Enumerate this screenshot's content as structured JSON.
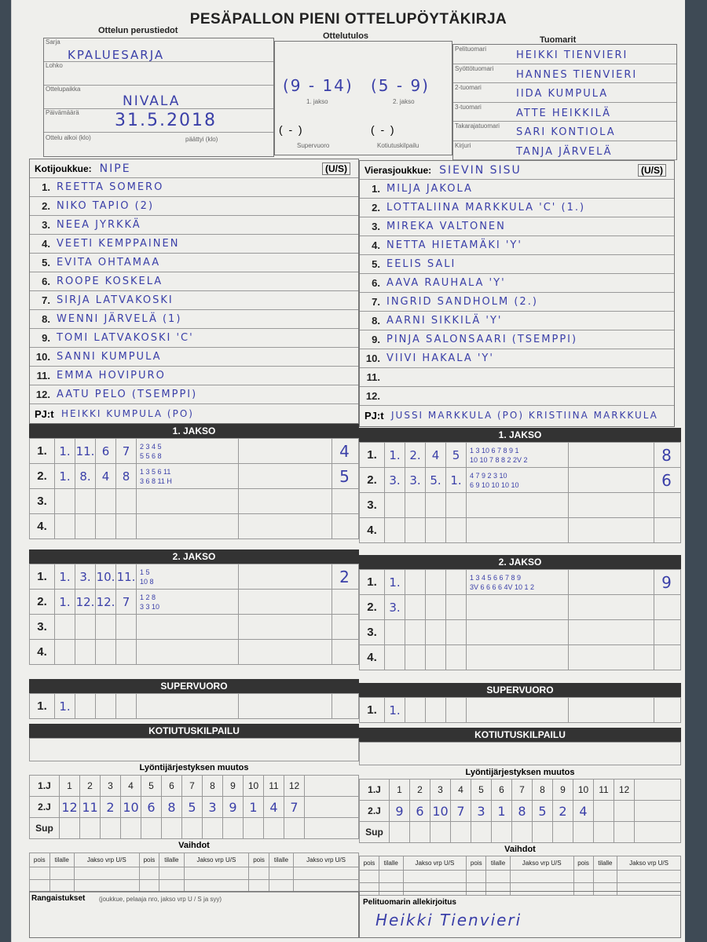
{
  "title": "PESÄPALLON PIENI OTTELUPÖYTÄKIRJA",
  "sections": {
    "basic": "Ottelun perustiedot",
    "result": "Ottelutulos",
    "referees": "Tuomarit"
  },
  "basic": {
    "sarja_label": "Sarja",
    "sarja": "KPALUESARJA",
    "lohko_label": "Lohko",
    "place_label": "Ottelupaikka",
    "place": "NIVALA",
    "date_label": "Päivämäärä",
    "date": "31.5.2018",
    "start_label": "Ottelu alkoi (klo)",
    "end_label": "päättyi (klo)"
  },
  "result": {
    "jakso1": "(9 - 14)",
    "jakso1_label": "1. jakso",
    "jakso2": "(5 - 9)",
    "jakso2_label": "2. jakso",
    "super": "(  -  )",
    "super_label": "Supervuoro",
    "koti": "(  -  )",
    "koti_label": "Kotiutuskilpailu"
  },
  "referees": [
    {
      "role": "Pelituomari",
      "name": "HEIKKI TIENVIERI"
    },
    {
      "role": "Syöttötuomari",
      "name": "HANNES TIENVIERI"
    },
    {
      "role": "2-tuomari",
      "name": "IIDA KUMPULA"
    },
    {
      "role": "3-tuomari",
      "name": "ATTE HEIKKILÄ"
    },
    {
      "role": "Takarajatuomari",
      "name": "SARI KONTIOLA"
    },
    {
      "role": "Kirjuri",
      "name": "TANJA JÄRVELÄ"
    }
  ],
  "home": {
    "label": "Kotijoukkue:",
    "name": "NIPE",
    "us": "(U/S)",
    "players": [
      "REETTA SOMERO",
      "NIKO TAPIO  (2)",
      "NEEA JYRKKÄ",
      "VEETI KEMPPAINEN",
      "EVITA OHTAMAA",
      "ROOPE KOSKELA",
      "SIRJA LATVAKOSKI",
      "WENNI JÄRVELÄ  (1)",
      "TOMI LATVAKOSKI 'C'",
      "SANNI KUMPULA",
      "EMMA HOVIPURO",
      "AATU PELO  (TSEMPPI)"
    ],
    "pj_label": "PJ:t",
    "pj": "HEIKKI KUMPULA (PO)"
  },
  "away": {
    "label": "Vierasjoukkue:",
    "name": "SIEVIN SISU",
    "us": "(U/S)",
    "players": [
      "MILJA JAKOLA",
      "LOTTALIINA MARKKULA 'C' (1.)",
      "MIREKA VALTONEN",
      "NETTA HIETAMÄKI 'Y'",
      "EELIS SALI",
      "AAVA RAUHALA 'Y'",
      "INGRID SANDHOLM (2.)",
      "AARNI SIKKILÄ 'Y'",
      "PINJA SALONSAARI (TSEMPPI)",
      "VIIVI HAKALA 'Y'",
      "",
      ""
    ],
    "pj_label": "PJ:t",
    "pj": "JUSSI MARKKULA (PO) KRISTIINA MARKKULA"
  },
  "jakso1_label": "1. JAKSO",
  "jakso2_label": "2. JAKSO",
  "super_label": "SUPERVUORO",
  "koti_label": "KOTIUTUSKILPAILU",
  "innings": {
    "home_j1": [
      {
        "n": "1.",
        "c": [
          "1.",
          "11.",
          "6",
          "7"
        ],
        "top": "2 3 4 5",
        "bot": "5 5 6 8",
        "s": "4"
      },
      {
        "n": "2.",
        "c": [
          "1.",
          "8.",
          "4",
          "8"
        ],
        "top": "1 3 5 6 11",
        "bot": "3 6 8 11 H",
        "s": "5"
      },
      {
        "n": "3.",
        "c": [
          "",
          "",
          "",
          ""
        ],
        "top": "",
        "bot": "",
        "s": ""
      },
      {
        "n": "4.",
        "c": [
          "",
          "",
          "",
          ""
        ],
        "top": "",
        "bot": "",
        "s": ""
      }
    ],
    "away_j1": [
      {
        "n": "1.",
        "c": [
          "1.",
          "2.",
          "4",
          "5"
        ],
        "top": "1 3 10 6 7 8 9 1",
        "bot": "10 10 7 8 8 2 2V 2",
        "s": "8"
      },
      {
        "n": "2.",
        "c": [
          "3.",
          "3.",
          "5.",
          "1."
        ],
        "top": "4 7 9 2 3 10",
        "bot": "6 9 10 10 10 10",
        "s": "6"
      },
      {
        "n": "3.",
        "c": [
          "",
          "",
          "",
          ""
        ],
        "top": "",
        "bot": "",
        "s": ""
      },
      {
        "n": "4.",
        "c": [
          "",
          "",
          "",
          ""
        ],
        "top": "",
        "bot": "",
        "s": ""
      }
    ],
    "home_j2": [
      {
        "n": "1.",
        "c": [
          "1.",
          "3.",
          "10.",
          "11."
        ],
        "top": "1 5",
        "bot": "10 8",
        "s": "2"
      },
      {
        "n": "2.",
        "c": [
          "1.",
          "12.",
          "12.",
          "7"
        ],
        "top": "1 2 8",
        "bot": "3 3 10",
        "s": ""
      },
      {
        "n": "3.",
        "c": [
          "",
          "",
          "",
          ""
        ],
        "top": "",
        "bot": "",
        "s": ""
      },
      {
        "n": "4.",
        "c": [
          "",
          "",
          "",
          ""
        ],
        "top": "",
        "bot": "",
        "s": ""
      }
    ],
    "away_j2": [
      {
        "n": "1.",
        "c": [
          "1.",
          "",
          "",
          ""
        ],
        "top": "1 3 4 5 6 6 7 8 9",
        "bot": "3V 6 6 6 6 4V 10 1 2",
        "s": "9"
      },
      {
        "n": "2.",
        "c": [
          "3.",
          "",
          "",
          ""
        ],
        "top": "",
        "bot": "",
        "s": ""
      },
      {
        "n": "3.",
        "c": [
          "",
          "",
          "",
          ""
        ],
        "top": "",
        "bot": "",
        "s": ""
      },
      {
        "n": "4.",
        "c": [
          "",
          "",
          "",
          ""
        ],
        "top": "",
        "bot": "",
        "s": ""
      }
    ],
    "home_sup": [
      {
        "n": "1.",
        "c": [
          "1.",
          "",
          "",
          ""
        ],
        "top": "",
        "bot": "",
        "s": ""
      }
    ],
    "away_sup": [
      {
        "n": "1.",
        "c": [
          "1.",
          "",
          "",
          ""
        ],
        "top": "",
        "bot": "",
        "s": ""
      }
    ]
  },
  "order": {
    "label": "Lyöntijärjestyksen muutos",
    "row1": "1.J",
    "row2": "2.J",
    "row3": "Sup",
    "cols": [
      "1",
      "2",
      "3",
      "4",
      "5",
      "6",
      "7",
      "8",
      "9",
      "10",
      "11",
      "12"
    ],
    "home_2j": [
      "12",
      "11",
      "2",
      "10",
      "6",
      "8",
      "5",
      "3",
      "9",
      "1",
      "4",
      "7"
    ],
    "away_2j": [
      "9",
      "6",
      "10",
      "7",
      "3",
      "1",
      "8",
      "5",
      "2",
      "4",
      "",
      ""
    ]
  },
  "subs": {
    "label": "Vaihdot",
    "cols": [
      "pois",
      "tilalle",
      "Jakso vrp U/S"
    ]
  },
  "penalties_label": "Rangaistukset",
  "penalties_hint": "(joukkue, pelaaja nro, jakso vrp U / S ja syy)",
  "signature_label": "Pelituomarin allekirjoitus",
  "signature": "Heikki Tienvieri"
}
